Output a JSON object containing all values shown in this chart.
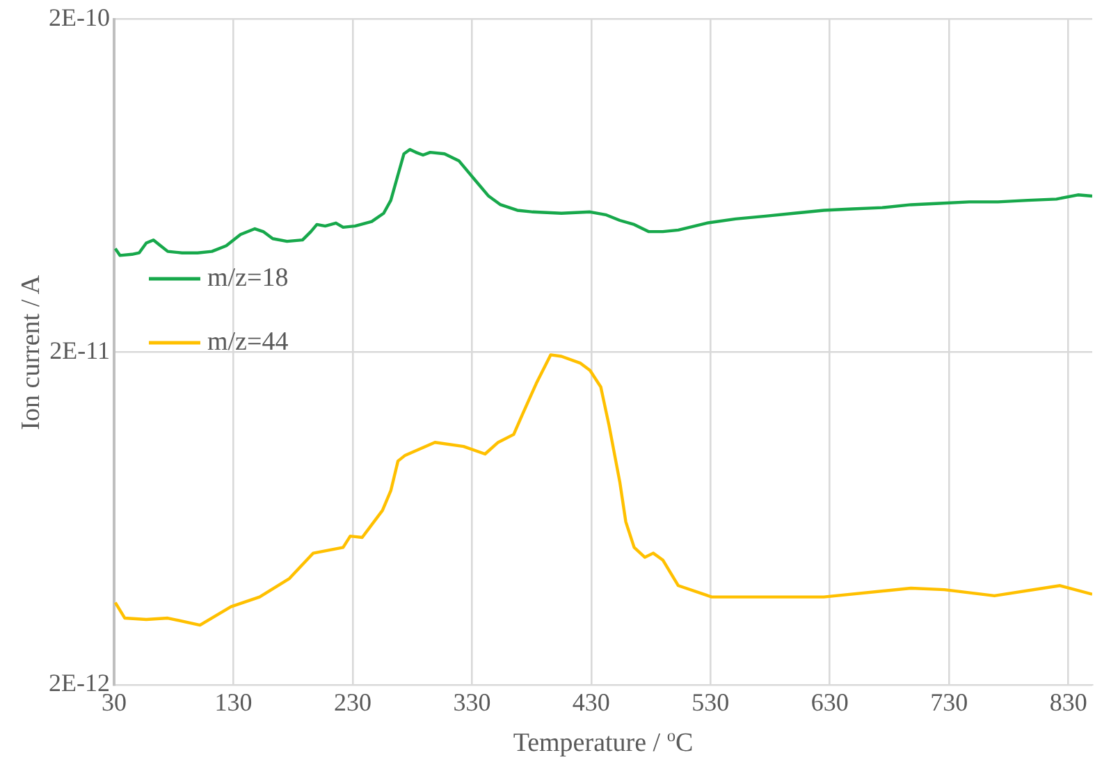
{
  "chart_data": {
    "type": "line",
    "xlabel": "Temperature / $^{o}$C",
    "ylabel": "Ion current / A",
    "log": "y",
    "grid": true,
    "legend": "left",
    "marker": "none",
    "line_style": "solid",
    "xlim": [
      30,
      850
    ],
    "xticks": [
      30,
      130,
      230,
      330,
      430,
      530,
      630,
      730,
      830
    ],
    "ylim": [
      2e-12,
      2e-10
    ],
    "yticks": [
      {
        "value": 2e-12,
        "label": "2E-12"
      },
      {
        "value": 2e-11,
        "label": "2E-11"
      },
      {
        "value": 2e-10,
        "label": "2E-10"
      }
    ],
    "series": [
      {
        "name": "m/z=18",
        "color": "#17a84b",
        "x": [
          31,
          35,
          45,
          51,
          57,
          63,
          69,
          75,
          87,
          100,
          112,
          124,
          136,
          148,
          155,
          163,
          175,
          188,
          195,
          200,
          207,
          216,
          222,
          232,
          246,
          256,
          262,
          268,
          273,
          278,
          283,
          289,
          295,
          307,
          319,
          332,
          344,
          354,
          368,
          381,
          405,
          429,
          442,
          454,
          466,
          478,
          490,
          503,
          527,
          551,
          576,
          600,
          625,
          649,
          674,
          698,
          722,
          747,
          771,
          796,
          820,
          838,
          850
        ],
        "values": [
          4.09e-11,
          3.9e-11,
          3.93e-11,
          3.97e-11,
          4.25e-11,
          4.34e-11,
          4.17e-11,
          4.01e-11,
          3.97e-11,
          3.97e-11,
          4.01e-11,
          4.17e-11,
          4.51e-11,
          4.69e-11,
          4.6e-11,
          4.38e-11,
          4.3e-11,
          4.34e-11,
          4.6e-11,
          4.83e-11,
          4.78e-11,
          4.88e-11,
          4.74e-11,
          4.78e-11,
          4.93e-11,
          5.22e-11,
          5.71e-11,
          6.81e-11,
          7.88e-11,
          8.12e-11,
          7.96e-11,
          7.81e-11,
          7.96e-11,
          7.88e-11,
          7.51e-11,
          6.61e-11,
          5.88e-11,
          5.54e-11,
          5.33e-11,
          5.27e-11,
          5.22e-11,
          5.27e-11,
          5.17e-11,
          4.97e-11,
          4.83e-11,
          4.6e-11,
          4.6e-11,
          4.65e-11,
          4.88e-11,
          5.02e-11,
          5.12e-11,
          5.22e-11,
          5.33e-11,
          5.38e-11,
          5.43e-11,
          5.54e-11,
          5.59e-11,
          5.65e-11,
          5.65e-11,
          5.71e-11,
          5.76e-11,
          5.93e-11,
          5.88e-11
        ]
      },
      {
        "name": "m/z=44",
        "color": "#ffc000",
        "x": [
          31,
          39,
          57,
          75,
          102,
          128,
          152,
          177,
          197,
          222,
          228,
          238,
          255,
          262,
          268,
          274,
          299,
          323,
          341,
          352,
          365,
          372,
          384,
          396,
          405,
          421,
          429,
          438,
          445,
          454,
          459,
          466,
          475,
          482,
          490,
          503,
          531,
          564,
          625,
          698,
          726,
          768,
          823,
          850
        ],
        "values": [
          3.53e-12,
          3.17e-12,
          3.14e-12,
          3.17e-12,
          3.02e-12,
          3.43e-12,
          3.67e-12,
          4.17e-12,
          4.97e-12,
          5.17e-12,
          5.59e-12,
          5.54e-12,
          6.68e-12,
          7.66e-12,
          9.4e-12,
          9.78e-12,
          1.07e-11,
          1.04e-11,
          9.87e-12,
          1.07e-11,
          1.13e-11,
          1.29e-11,
          1.61e-11,
          1.96e-11,
          1.94e-11,
          1.85e-11,
          1.76e-11,
          1.57e-11,
          1.2e-11,
          8.12e-12,
          6.17e-12,
          5.17e-12,
          4.83e-12,
          4.97e-12,
          4.74e-12,
          3.97e-12,
          3.67e-12,
          3.67e-12,
          3.67e-12,
          3.9e-12,
          3.86e-12,
          3.7e-12,
          3.97e-12,
          3.74e-12
        ]
      }
    ]
  }
}
